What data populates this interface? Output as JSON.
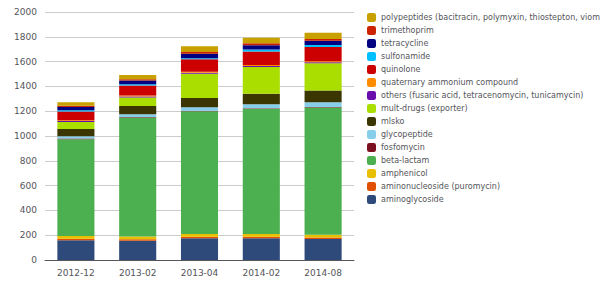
{
  "chart_data": {
    "type": "bar",
    "stacked": true,
    "grid": true,
    "legend": "right",
    "categories": [
      "2012-12",
      "2013-02",
      "2013-04",
      "2014-02",
      "2014-08"
    ],
    "series": [
      {
        "name": "aminoglycoside",
        "color": "#2E4A7A",
        "values": [
          160,
          155,
          175,
          175,
          170
        ]
      },
      {
        "name": "aminonucleoside (puromycin)",
        "color": "#E05000",
        "values": [
          12,
          12,
          12,
          12,
          12
        ]
      },
      {
        "name": "amphenicol",
        "color": "#E8C000",
        "values": [
          22,
          22,
          22,
          22,
          22
        ]
      },
      {
        "name": "beta-lactam",
        "color": "#4CAF50",
        "values": [
          780,
          960,
          990,
          1010,
          1025
        ]
      },
      {
        "name": "fosfomycin",
        "color": "#7B1020",
        "values": [
          5,
          5,
          5,
          5,
          5
        ]
      },
      {
        "name": "glycopeptide",
        "color": "#87CEEB",
        "values": [
          18,
          22,
          28,
          32,
          38
        ]
      },
      {
        "name": "mlsko",
        "color": "#3B3500",
        "values": [
          60,
          65,
          75,
          85,
          95
        ]
      },
      {
        "name": "mult-drugs (exporter)",
        "color": "#AADD00",
        "values": [
          55,
          70,
          195,
          215,
          220
        ]
      },
      {
        "name": "others (fusaric acid, tetracenomycin, tunicamycin)",
        "color": "#6A0DAD",
        "values": [
          8,
          8,
          8,
          8,
          8
        ]
      },
      {
        "name": "quaternary ammonium compound",
        "color": "#FF8C00",
        "values": [
          8,
          8,
          8,
          8,
          8
        ]
      },
      {
        "name": "quinolone",
        "color": "#CC0000",
        "values": [
          70,
          80,
          100,
          110,
          115
        ]
      },
      {
        "name": "sulfonamide",
        "color": "#00BFFF",
        "values": [
          10,
          10,
          10,
          15,
          15
        ]
      },
      {
        "name": "tetracycline",
        "color": "#000080",
        "values": [
          25,
          30,
          35,
          35,
          35
        ]
      },
      {
        "name": "trimethoprim",
        "color": "#CC2200",
        "values": [
          10,
          10,
          15,
          15,
          15
        ]
      },
      {
        "name": "polypeptides (bacitracin, polymyxin, thiostepton, viom",
        "color": "#C8A000",
        "values": [
          30,
          35,
          45,
          45,
          50
        ]
      }
    ],
    "ylim": [
      0,
      2000
    ],
    "yticks": [
      0,
      200,
      400,
      600,
      800,
      1000,
      1200,
      1400,
      1600,
      1800,
      2000
    ]
  }
}
